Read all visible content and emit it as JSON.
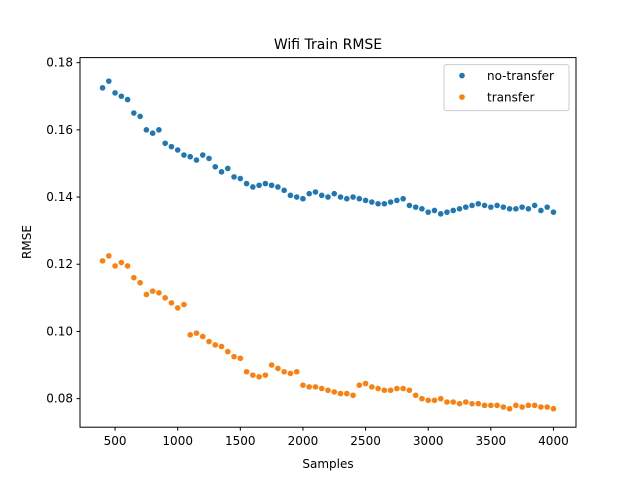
{
  "chart_data": {
    "type": "scatter",
    "title": "Wifi  Train RMSE",
    "xlabel": "Samples",
    "ylabel": "RMSE",
    "xlim": [
      220,
      4180
    ],
    "ylim": [
      0.0715,
      0.1815
    ],
    "x_ticks": [
      500,
      1000,
      1500,
      2000,
      2500,
      3000,
      3500,
      4000
    ],
    "y_ticks": [
      0.08,
      0.1,
      0.12,
      0.14,
      0.16,
      0.18
    ],
    "y_tick_labels": [
      "0.08",
      "0.10",
      "0.12",
      "0.14",
      "0.16",
      "0.18"
    ],
    "grid": false,
    "legend_position": "top-right",
    "series": [
      {
        "name": "no-transfer",
        "color": "#1f77b4",
        "points": [
          [
            400,
            0.1725
          ],
          [
            450,
            0.1745
          ],
          [
            500,
            0.171
          ],
          [
            550,
            0.17
          ],
          [
            600,
            0.169
          ],
          [
            650,
            0.165
          ],
          [
            700,
            0.164
          ],
          [
            750,
            0.16
          ],
          [
            800,
            0.159
          ],
          [
            850,
            0.16
          ],
          [
            900,
            0.156
          ],
          [
            950,
            0.155
          ],
          [
            1000,
            0.154
          ],
          [
            1050,
            0.1525
          ],
          [
            1100,
            0.152
          ],
          [
            1150,
            0.151
          ],
          [
            1200,
            0.1525
          ],
          [
            1250,
            0.1515
          ],
          [
            1300,
            0.149
          ],
          [
            1350,
            0.1475
          ],
          [
            1400,
            0.1485
          ],
          [
            1450,
            0.146
          ],
          [
            1500,
            0.1455
          ],
          [
            1550,
            0.144
          ],
          [
            1600,
            0.143
          ],
          [
            1650,
            0.1435
          ],
          [
            1700,
            0.144
          ],
          [
            1750,
            0.1435
          ],
          [
            1800,
            0.143
          ],
          [
            1850,
            0.142
          ],
          [
            1900,
            0.1405
          ],
          [
            1950,
            0.14
          ],
          [
            2000,
            0.1395
          ],
          [
            2050,
            0.141
          ],
          [
            2100,
            0.1415
          ],
          [
            2150,
            0.1405
          ],
          [
            2200,
            0.14
          ],
          [
            2250,
            0.141
          ],
          [
            2300,
            0.14
          ],
          [
            2350,
            0.1395
          ],
          [
            2400,
            0.14
          ],
          [
            2450,
            0.1395
          ],
          [
            2500,
            0.139
          ],
          [
            2550,
            0.1385
          ],
          [
            2600,
            0.138
          ],
          [
            2650,
            0.138
          ],
          [
            2700,
            0.1385
          ],
          [
            2750,
            0.139
          ],
          [
            2800,
            0.1395
          ],
          [
            2850,
            0.1375
          ],
          [
            2900,
            0.137
          ],
          [
            2950,
            0.1365
          ],
          [
            3000,
            0.1355
          ],
          [
            3050,
            0.136
          ],
          [
            3100,
            0.135
          ],
          [
            3150,
            0.1355
          ],
          [
            3200,
            0.136
          ],
          [
            3250,
            0.1365
          ],
          [
            3300,
            0.137
          ],
          [
            3350,
            0.1375
          ],
          [
            3400,
            0.138
          ],
          [
            3450,
            0.1375
          ],
          [
            3500,
            0.137
          ],
          [
            3550,
            0.1375
          ],
          [
            3600,
            0.137
          ],
          [
            3650,
            0.1365
          ],
          [
            3700,
            0.1365
          ],
          [
            3750,
            0.137
          ],
          [
            3800,
            0.1365
          ],
          [
            3850,
            0.1375
          ],
          [
            3900,
            0.136
          ],
          [
            3950,
            0.137
          ],
          [
            4000,
            0.1355
          ]
        ]
      },
      {
        "name": "transfer",
        "color": "#ff7f0e",
        "points": [
          [
            400,
            0.121
          ],
          [
            450,
            0.1225
          ],
          [
            500,
            0.1195
          ],
          [
            550,
            0.1205
          ],
          [
            600,
            0.1195
          ],
          [
            650,
            0.116
          ],
          [
            700,
            0.1145
          ],
          [
            750,
            0.111
          ],
          [
            800,
            0.112
          ],
          [
            850,
            0.1115
          ],
          [
            900,
            0.11
          ],
          [
            950,
            0.1085
          ],
          [
            1000,
            0.107
          ],
          [
            1050,
            0.108
          ],
          [
            1100,
            0.099
          ],
          [
            1150,
            0.0995
          ],
          [
            1200,
            0.0985
          ],
          [
            1250,
            0.097
          ],
          [
            1300,
            0.096
          ],
          [
            1350,
            0.0955
          ],
          [
            1400,
            0.094
          ],
          [
            1450,
            0.0925
          ],
          [
            1500,
            0.092
          ],
          [
            1550,
            0.088
          ],
          [
            1600,
            0.087
          ],
          [
            1650,
            0.0865
          ],
          [
            1700,
            0.087
          ],
          [
            1750,
            0.09
          ],
          [
            1800,
            0.089
          ],
          [
            1850,
            0.088
          ],
          [
            1900,
            0.0875
          ],
          [
            1950,
            0.088
          ],
          [
            2000,
            0.084
          ],
          [
            2050,
            0.0835
          ],
          [
            2100,
            0.0835
          ],
          [
            2150,
            0.083
          ],
          [
            2200,
            0.0825
          ],
          [
            2250,
            0.082
          ],
          [
            2300,
            0.0815
          ],
          [
            2350,
            0.0815
          ],
          [
            2400,
            0.081
          ],
          [
            2450,
            0.084
          ],
          [
            2500,
            0.0845
          ],
          [
            2550,
            0.0835
          ],
          [
            2600,
            0.083
          ],
          [
            2650,
            0.0825
          ],
          [
            2700,
            0.0825
          ],
          [
            2750,
            0.083
          ],
          [
            2800,
            0.083
          ],
          [
            2850,
            0.0825
          ],
          [
            2900,
            0.081
          ],
          [
            2950,
            0.08
          ],
          [
            3000,
            0.0795
          ],
          [
            3050,
            0.0795
          ],
          [
            3100,
            0.08
          ],
          [
            3150,
            0.079
          ],
          [
            3200,
            0.079
          ],
          [
            3250,
            0.0785
          ],
          [
            3300,
            0.079
          ],
          [
            3350,
            0.0785
          ],
          [
            3400,
            0.0785
          ],
          [
            3450,
            0.078
          ],
          [
            3500,
            0.078
          ],
          [
            3550,
            0.078
          ],
          [
            3600,
            0.0775
          ],
          [
            3650,
            0.077
          ],
          [
            3700,
            0.078
          ],
          [
            3750,
            0.0775
          ],
          [
            3800,
            0.078
          ],
          [
            3850,
            0.078
          ],
          [
            3900,
            0.0775
          ],
          [
            3950,
            0.0775
          ],
          [
            4000,
            0.077
          ]
        ]
      }
    ]
  }
}
